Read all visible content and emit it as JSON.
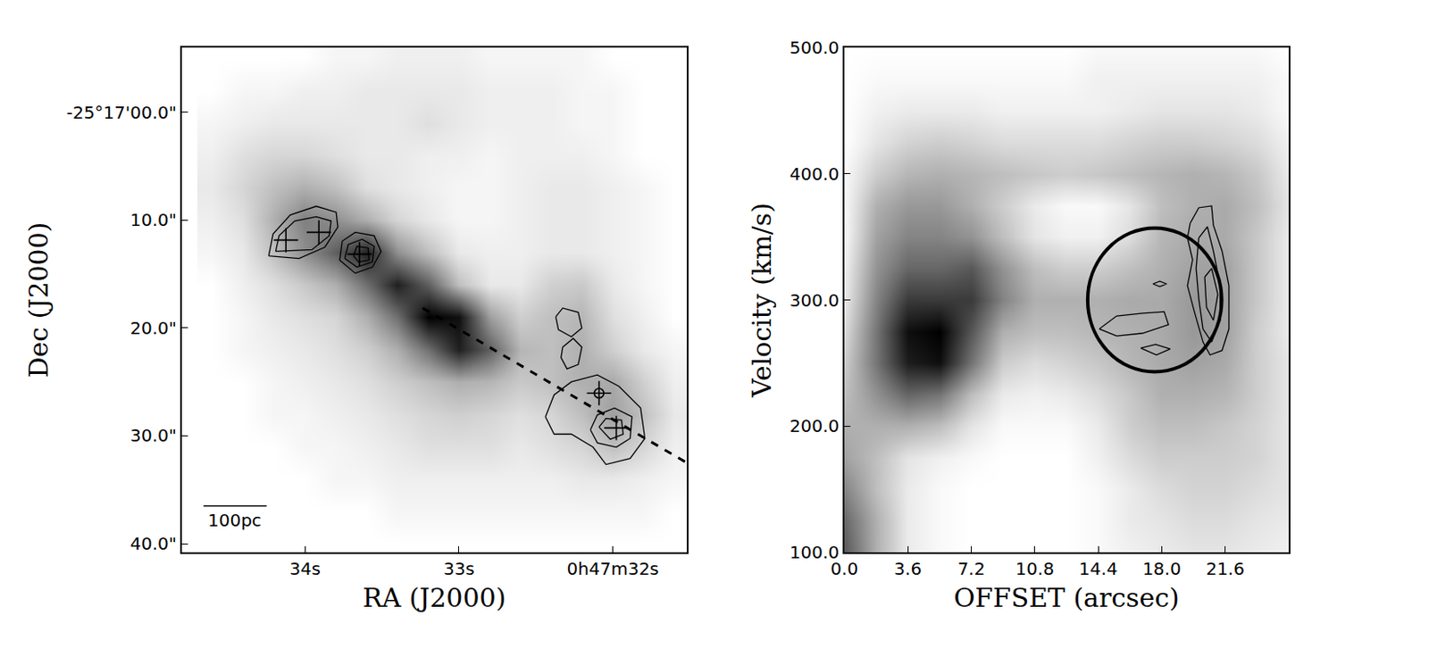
{
  "chart_data": [
    {
      "type": "heatmap",
      "x_label": "RA (J2000)",
      "y_label": "Dec (J2000)",
      "xlim": [
        34.8,
        31.52
      ],
      "ylim": [
        40.8,
        -6.0
      ],
      "xticks": [
        {
          "value": 34,
          "label": "34s"
        },
        {
          "value": 33,
          "label": "33s"
        },
        {
          "value": 32,
          "label": "0h47m32s"
        }
      ],
      "yticks": [
        {
          "value": 0,
          "label": "-25°17'00.0\""
        },
        {
          "value": 10,
          "label": "10.0\""
        },
        {
          "value": 20,
          "label": "20.0\""
        },
        {
          "value": 30,
          "label": "30.0\""
        },
        {
          "value": 40,
          "label": "40.0\""
        }
      ],
      "x": [
        31.6,
        31.8,
        32.0,
        32.2,
        32.4,
        32.6,
        32.8,
        33.0,
        33.2,
        33.4,
        33.6,
        33.8,
        34.0,
        34.2,
        34.4,
        34.6
      ],
      "y": [
        -5,
        -2,
        1,
        4,
        7,
        10,
        13,
        16,
        19,
        22,
        25,
        28,
        31,
        34,
        37,
        40
      ],
      "cells": [
        [
          5,
          5,
          5,
          8,
          8,
          8,
          8,
          10,
          10,
          10,
          8,
          8,
          5,
          5,
          5,
          5
        ],
        [
          5,
          5,
          8,
          8,
          10,
          10,
          10,
          12,
          12,
          12,
          12,
          10,
          10,
          8,
          8,
          5
        ],
        [
          5,
          5,
          8,
          8,
          10,
          10,
          10,
          12,
          15,
          12,
          12,
          12,
          12,
          12,
          10,
          8
        ],
        [
          5,
          5,
          8,
          10,
          10,
          10,
          8,
          10,
          10,
          12,
          12,
          15,
          18,
          18,
          15,
          10
        ],
        [
          5,
          8,
          10,
          12,
          12,
          10,
          8,
          8,
          10,
          12,
          15,
          25,
          30,
          25,
          18,
          12
        ],
        [
          5,
          8,
          10,
          12,
          12,
          10,
          8,
          8,
          12,
          18,
          30,
          40,
          45,
          30,
          15,
          10
        ],
        [
          5,
          8,
          10,
          12,
          12,
          10,
          10,
          12,
          25,
          40,
          75,
          55,
          40,
          25,
          12,
          8
        ],
        [
          5,
          8,
          12,
          22,
          20,
          12,
          12,
          25,
          55,
          75,
          50,
          30,
          22,
          15,
          10,
          5
        ],
        [
          5,
          10,
          15,
          28,
          25,
          20,
          35,
          80,
          85,
          50,
          30,
          18,
          15,
          12,
          8,
          5
        ],
        [
          8,
          12,
          20,
          30,
          25,
          28,
          55,
          75,
          50,
          30,
          20,
          15,
          12,
          10,
          8,
          5
        ],
        [
          10,
          20,
          32,
          30,
          25,
          22,
          28,
          30,
          25,
          20,
          15,
          12,
          10,
          8,
          5,
          5
        ],
        [
          12,
          25,
          35,
          25,
          18,
          15,
          18,
          20,
          18,
          15,
          12,
          10,
          8,
          8,
          5,
          5
        ],
        [
          10,
          18,
          25,
          18,
          15,
          12,
          15,
          15,
          15,
          12,
          10,
          8,
          8,
          5,
          5,
          5
        ],
        [
          8,
          10,
          12,
          12,
          10,
          10,
          10,
          10,
          10,
          10,
          8,
          8,
          5,
          5,
          5,
          5
        ],
        [
          5,
          8,
          8,
          8,
          8,
          8,
          8,
          8,
          8,
          8,
          5,
          5,
          5,
          5,
          5,
          5
        ],
        [
          5,
          5,
          5,
          5,
          5,
          5,
          5,
          5,
          5,
          5,
          5,
          5,
          5,
          5,
          5,
          5
        ]
      ],
      "contours": [
        {
          "x": [
            34.236,
            34.208,
            34.096,
            33.927,
            33.798,
            33.787,
            33.871,
            34.039,
            34.236
          ],
          "y": [
            13.31,
            11.29,
            9.52,
            8.71,
            9.27,
            10.65,
            12.5,
            13.55,
            13.31
          ]
        },
        {
          "x": [
            34.191,
            34.169,
            34.067,
            33.927,
            33.831,
            33.843,
            33.955,
            34.191
          ],
          "y": [
            12.9,
            11.45,
            10.08,
            9.68,
            10.08,
            11.45,
            12.74,
            12.9
          ]
        },
        {
          "x": [
            33.775,
            33.758,
            33.674,
            33.551,
            33.506,
            33.562,
            33.674,
            33.775
          ],
          "y": [
            13.71,
            11.94,
            11.13,
            11.45,
            12.9,
            14.35,
            14.92,
            13.71
          ]
        },
        {
          "x": [
            33.742,
            33.719,
            33.629,
            33.551,
            33.562,
            33.663,
            33.742
          ],
          "y": [
            13.55,
            12.26,
            11.77,
            12.42,
            13.87,
            14.35,
            13.55
          ]
        },
        {
          "x": [
            33.685,
            33.663,
            33.59,
            33.584,
            33.652,
            33.685
          ],
          "y": [
            13.31,
            12.42,
            12.58,
            13.71,
            13.87,
            13.31
          ]
        },
        {
          "x": [
            32.438,
            32.382,
            32.27,
            32.101,
            31.961,
            31.82,
            31.792,
            31.888,
            32.045,
            32.129,
            32.27,
            32.382,
            32.438
          ],
          "y": [
            28.23,
            26.21,
            25.0,
            24.35,
            25.4,
            27.42,
            30.24,
            32.1,
            32.66,
            31.05,
            29.84,
            29.84,
            28.23
          ]
        },
        {
          "x": [
            32.146,
            32.101,
            31.989,
            31.876,
            31.888,
            31.978,
            32.101,
            32.146
          ],
          "y": [
            29.44,
            28.06,
            27.42,
            28.23,
            30.24,
            31.05,
            30.65,
            29.44
          ]
        },
        {
          "x": [
            32.09,
            32.045,
            31.944,
            31.933,
            32.017,
            32.09
          ],
          "y": [
            29.19,
            28.39,
            28.55,
            29.84,
            30.32,
            29.19
          ]
        },
        {
          "x": [
            32.371,
            32.326,
            32.225,
            32.202,
            32.27,
            32.354,
            32.371
          ],
          "y": [
            18.95,
            18.15,
            18.55,
            20.0,
            20.81,
            20.16,
            18.95
          ]
        },
        {
          "x": [
            32.326,
            32.258,
            32.202,
            32.225,
            32.298,
            32.337,
            32.326
          ],
          "y": [
            21.77,
            20.97,
            21.77,
            23.39,
            23.79,
            22.74,
            21.77
          ]
        }
      ],
      "markers": [
        {
          "x": [
            34.124,
            33.91,
            33.646,
            32.09,
            31.978
          ],
          "y": [
            11.85,
            11.13,
            13.15,
            26.05,
            29.27
          ],
          "marker": "cross"
        },
        {
          "x": [
            32.09
          ],
          "y": [
            26.05
          ],
          "marker": "circle"
        }
      ],
      "lines": [
        {
          "x": [
            33.236,
            31.52
          ],
          "y": [
            18.15,
            32.5
          ],
          "line_style": "dashed"
        }
      ],
      "scale_bar": {
        "label": "100pc",
        "x": [
          34.66,
          34.25
        ],
        "y": 36.5
      }
    },
    {
      "type": "heatmap",
      "x_label": "OFFSET (arcsec)",
      "y_label": "Velocity (km/s)",
      "xlim": [
        0,
        25.2
      ],
      "ylim": [
        100,
        500
      ],
      "xticks": [
        {
          "value": 0,
          "label": "0.0"
        },
        3.6,
        7.2,
        10.8,
        14.4,
        {
          "value": 18,
          "label": "18.0"
        },
        21.6
      ],
      "yticks": [
        {
          "value": 100,
          "label": "100.0"
        },
        {
          "value": 200,
          "label": "200.0"
        },
        {
          "value": 300,
          "label": "300.0"
        },
        {
          "value": 400,
          "label": "400.0"
        },
        {
          "value": 500,
          "label": "500.0"
        }
      ],
      "x": [
        0,
        1.8,
        3.6,
        5.4,
        7.2,
        9.0,
        10.8,
        12.6,
        14.4,
        16.2,
        18.0,
        19.8,
        21.6,
        23.4,
        25.2
      ],
      "y": [
        100,
        125,
        150,
        175,
        200,
        225,
        250,
        275,
        300,
        325,
        350,
        375,
        400,
        425,
        450,
        475,
        500
      ],
      "cells": [
        [
          60,
          30,
          10,
          5,
          3,
          3,
          3,
          3,
          5,
          8,
          10,
          12,
          12,
          10,
          8
        ],
        [
          55,
          30,
          10,
          5,
          3,
          3,
          3,
          3,
          5,
          10,
          12,
          15,
          15,
          12,
          10
        ],
        [
          45,
          25,
          10,
          5,
          3,
          3,
          3,
          3,
          5,
          10,
          15,
          18,
          18,
          15,
          12
        ],
        [
          35,
          25,
          12,
          8,
          5,
          3,
          3,
          3,
          8,
          15,
          20,
          20,
          20,
          18,
          12
        ],
        [
          30,
          30,
          30,
          25,
          12,
          5,
          5,
          5,
          10,
          20,
          25,
          25,
          22,
          18,
          12
        ],
        [
          25,
          40,
          55,
          50,
          25,
          10,
          8,
          10,
          15,
          22,
          30,
          30,
          28,
          20,
          12
        ],
        [
          20,
          50,
          80,
          85,
          50,
          20,
          15,
          18,
          22,
          28,
          32,
          35,
          32,
          20,
          12
        ],
        [
          15,
          50,
          85,
          90,
          60,
          30,
          25,
          25,
          28,
          30,
          32,
          38,
          35,
          20,
          10
        ],
        [
          10,
          45,
          70,
          70,
          70,
          45,
          30,
          30,
          30,
          32,
          32,
          38,
          35,
          22,
          10
        ],
        [
          8,
          40,
          55,
          55,
          60,
          40,
          25,
          20,
          20,
          25,
          30,
          35,
          35,
          22,
          10
        ],
        [
          5,
          35,
          45,
          45,
          40,
          25,
          12,
          8,
          8,
          15,
          28,
          32,
          32,
          22,
          10
        ],
        [
          5,
          30,
          38,
          38,
          30,
          20,
          10,
          5,
          5,
          12,
          25,
          30,
          32,
          25,
          12
        ],
        [
          5,
          20,
          28,
          30,
          28,
          25,
          22,
          20,
          22,
          25,
          28,
          30,
          28,
          22,
          10
        ],
        [
          3,
          12,
          18,
          20,
          18,
          15,
          15,
          15,
          15,
          18,
          20,
          20,
          18,
          15,
          8
        ],
        [
          3,
          8,
          10,
          10,
          10,
          8,
          8,
          8,
          8,
          10,
          12,
          12,
          12,
          10,
          5
        ],
        [
          3,
          5,
          5,
          5,
          5,
          5,
          5,
          5,
          8,
          8,
          8,
          8,
          8,
          8,
          5
        ],
        [
          3,
          3,
          3,
          3,
          3,
          3,
          3,
          3,
          5,
          5,
          5,
          5,
          5,
          5,
          3
        ]
      ],
      "contours": [
        {
          "x": [
            19.61,
            20.1,
            20.83,
            20.93,
            21.42,
            21.81,
            21.81,
            21.42,
            20.74,
            20.34,
            19.85,
            19.46,
            19.75,
            19.46,
            19.61
          ],
          "y": [
            360.7,
            373.1,
            374.5,
            359.3,
            338.8,
            311.3,
            277.0,
            259.9,
            256.4,
            266.7,
            290.7,
            311.3,
            331.9,
            349.1,
            360.7
          ]
        },
        {
          "x": [
            20.1,
            20.59,
            20.93,
            21.32,
            21.32,
            20.83,
            20.34,
            20.1,
            19.95,
            20.1
          ],
          "y": [
            349.1,
            358.0,
            338.8,
            311.3,
            283.9,
            266.7,
            277.0,
            301.0,
            325.0,
            349.1
          ]
        },
        {
          "x": [
            20.44,
            20.83,
            21.18,
            20.93,
            20.54,
            20.44
          ],
          "y": [
            318.2,
            325.0,
            304.5,
            283.9,
            294.2,
            318.2
          ]
        },
        {
          "x": [
            14.46,
            15.44,
            16.91,
            18.14,
            18.38,
            16.91,
            15.44,
            14.46
          ],
          "y": [
            277.0,
            287.3,
            289.4,
            290.7,
            280.4,
            273.6,
            271.5,
            277.0
          ]
        },
        {
          "x": [
            16.81,
            17.65,
            18.48,
            17.7,
            16.81
          ],
          "y": [
            261.9,
            264.7,
            261.2,
            256.4,
            261.9
          ]
        },
        {
          "x": [
            17.5,
            17.89,
            18.28,
            17.89,
            17.5
          ],
          "y": [
            312.7,
            314.8,
            312.7,
            310.6,
            312.7
          ]
        }
      ],
      "ellipse": {
        "center": [
          17.6,
          300
        ],
        "radii": [
          3.8,
          57
        ]
      }
    }
  ]
}
